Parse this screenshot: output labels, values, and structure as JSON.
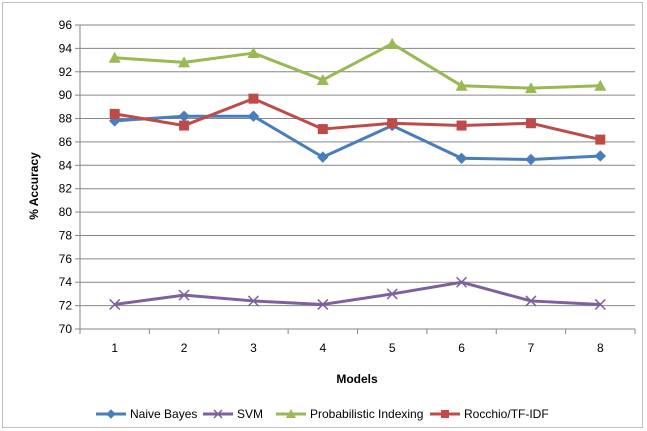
{
  "chart_data": {
    "type": "line",
    "title": "",
    "xlabel": "Models",
    "ylabel": "% Accuracy",
    "categories": [
      "1",
      "2",
      "3",
      "4",
      "5",
      "6",
      "7",
      "8"
    ],
    "ylim": [
      70,
      96
    ],
    "yticks": [
      70,
      72,
      74,
      76,
      78,
      80,
      82,
      84,
      86,
      88,
      90,
      92,
      94,
      96
    ],
    "grid": "horizontal",
    "legend_position": "bottom",
    "series": [
      {
        "name": "Naive Bayes",
        "color": "#4a7ebb",
        "marker": "diamond",
        "values": [
          87.8,
          88.2,
          88.2,
          84.7,
          87.4,
          84.6,
          84.5,
          84.8
        ]
      },
      {
        "name": "SVM",
        "color": "#7d60a0",
        "marker": "x",
        "values": [
          72.1,
          72.9,
          72.4,
          72.1,
          73.0,
          74.0,
          72.4,
          72.1
        ]
      },
      {
        "name": "Probabilistic Indexing",
        "color": "#98b954",
        "marker": "triangle",
        "values": [
          93.2,
          92.8,
          93.6,
          91.3,
          94.4,
          90.8,
          90.6,
          90.8
        ]
      },
      {
        "name": "Rocchio/TF-IDF",
        "color": "#be4b48",
        "marker": "square",
        "values": [
          88.4,
          87.4,
          89.7,
          87.1,
          87.6,
          87.4,
          87.6,
          86.2
        ]
      }
    ]
  }
}
